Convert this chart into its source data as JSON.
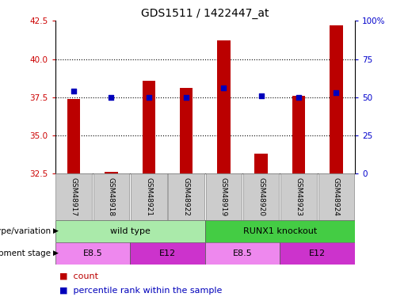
{
  "title": "GDS1511 / 1422447_at",
  "samples": [
    "GSM48917",
    "GSM48918",
    "GSM48921",
    "GSM48922",
    "GSM48919",
    "GSM48920",
    "GSM48923",
    "GSM48924"
  ],
  "count_values": [
    37.4,
    32.6,
    38.6,
    38.1,
    41.2,
    33.8,
    37.6,
    42.2
  ],
  "percentile_values": [
    54,
    50,
    50,
    50,
    56,
    51,
    50,
    53
  ],
  "ylim_left": [
    32.5,
    42.5
  ],
  "ylim_right": [
    0,
    100
  ],
  "yticks_left": [
    32.5,
    35.0,
    37.5,
    40.0,
    42.5
  ],
  "yticks_right": [
    0,
    25,
    50,
    75,
    100
  ],
  "ytick_labels_right": [
    "0",
    "25",
    "50",
    "75",
    "100%"
  ],
  "bar_color": "#bb0000",
  "dot_color": "#0000bb",
  "bar_width": 0.35,
  "dot_size": 18,
  "grid_yticks": [
    35.0,
    37.5,
    40.0
  ],
  "genotype_variation": [
    {
      "label": "wild type",
      "start": 0,
      "end": 4,
      "color": "#aaeaaa"
    },
    {
      "label": "RUNX1 knockout",
      "start": 4,
      "end": 8,
      "color": "#44cc44"
    }
  ],
  "development_stage": [
    {
      "label": "E8.5",
      "start": 0,
      "end": 2,
      "color": "#ee88ee"
    },
    {
      "label": "E12",
      "start": 2,
      "end": 4,
      "color": "#cc33cc"
    },
    {
      "label": "E8.5",
      "start": 4,
      "end": 6,
      "color": "#ee88ee"
    },
    {
      "label": "E12",
      "start": 6,
      "end": 8,
      "color": "#cc33cc"
    }
  ],
  "left_label_color": "#cc0000",
  "right_label_color": "#0000cc",
  "sample_box_color": "#cccccc",
  "legend_count_color": "#bb0000",
  "legend_pct_color": "#0000bb"
}
